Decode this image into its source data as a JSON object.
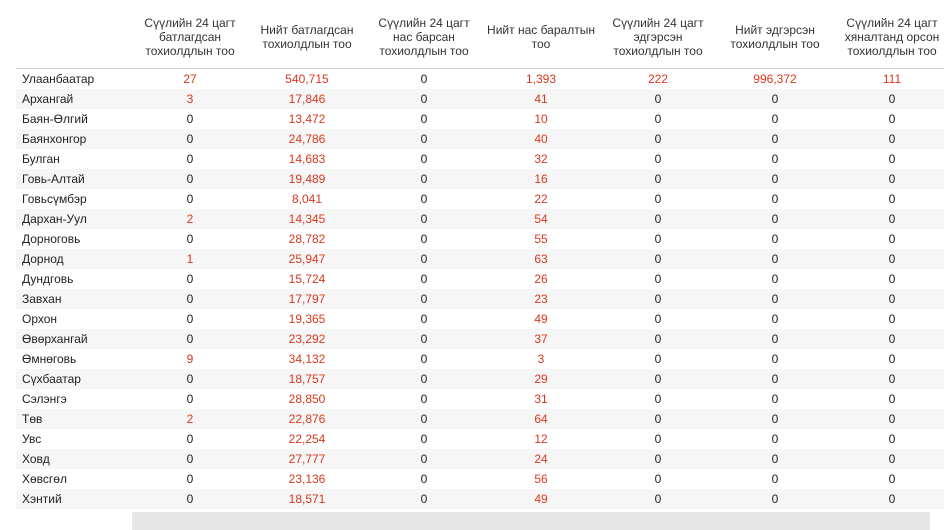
{
  "table": {
    "headers": [
      "Сүүлийн 24 цагт батлагдсан тохиолдлын тоо",
      "Нийт батлагдсан тохиолдлын тоо",
      "Сүүлийн 24 цагт нас барсан тохиолдлын тоо",
      "Нийт нас баралтын тоо",
      "Сүүлийн 24 цагт эдгэрсэн тохиолдлын тоо",
      "Нийт эдгэрсэн тохиолдлын тоо",
      "Сүүлийн 24 цагт хяналтанд орсон тохиолдлын тоо"
    ],
    "rows": [
      [
        "Улаанбаатар",
        "27",
        "540,715",
        "0",
        "1,393",
        "222",
        "996,372",
        "111"
      ],
      [
        "Архангай",
        "3",
        "17,846",
        "0",
        "41",
        "0",
        "0",
        "0"
      ],
      [
        "Баян-Өлгий",
        "0",
        "13,472",
        "0",
        "10",
        "0",
        "0",
        "0"
      ],
      [
        "Баянхонгор",
        "0",
        "24,786",
        "0",
        "40",
        "0",
        "0",
        "0"
      ],
      [
        "Булган",
        "0",
        "14,683",
        "0",
        "32",
        "0",
        "0",
        "0"
      ],
      [
        "Говь-Алтай",
        "0",
        "19,489",
        "0",
        "16",
        "0",
        "0",
        "0"
      ],
      [
        "Говьсүмбэр",
        "0",
        "8,041",
        "0",
        "22",
        "0",
        "0",
        "0"
      ],
      [
        "Дархан-Уул",
        "2",
        "14,345",
        "0",
        "54",
        "0",
        "0",
        "0"
      ],
      [
        "Дорноговь",
        "0",
        "28,782",
        "0",
        "55",
        "0",
        "0",
        "0"
      ],
      [
        "Дорнод",
        "1",
        "25,947",
        "0",
        "63",
        "0",
        "0",
        "0"
      ],
      [
        "Дундговь",
        "0",
        "15,724",
        "0",
        "26",
        "0",
        "0",
        "0"
      ],
      [
        "Завхан",
        "0",
        "17,797",
        "0",
        "23",
        "0",
        "0",
        "0"
      ],
      [
        "Орхон",
        "0",
        "19,365",
        "0",
        "49",
        "0",
        "0",
        "0"
      ],
      [
        "Өвөрхангай",
        "0",
        "23,292",
        "0",
        "37",
        "0",
        "0",
        "0"
      ],
      [
        "Өмнөговь",
        "9",
        "34,132",
        "0",
        "3",
        "0",
        "0",
        "0"
      ],
      [
        "Сүхбаатар",
        "0",
        "18,757",
        "0",
        "29",
        "0",
        "0",
        "0"
      ],
      [
        "Сэлэнгэ",
        "0",
        "28,850",
        "0",
        "31",
        "0",
        "0",
        "0"
      ],
      [
        "Төв",
        "2",
        "22,876",
        "0",
        "64",
        "0",
        "0",
        "0"
      ],
      [
        "Увс",
        "0",
        "22,254",
        "0",
        "12",
        "0",
        "0",
        "0"
      ],
      [
        "Ховд",
        "0",
        "27,777",
        "0",
        "24",
        "0",
        "0",
        "0"
      ],
      [
        "Хөвсгөл",
        "0",
        "23,136",
        "0",
        "56",
        "0",
        "0",
        "0"
      ],
      [
        "Хэнтий",
        "0",
        "18,571",
        "0",
        "49",
        "0",
        "0",
        "0"
      ]
    ]
  }
}
